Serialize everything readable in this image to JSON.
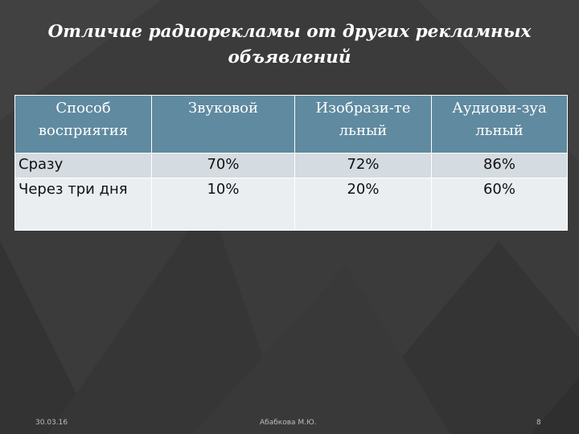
{
  "slide": {
    "title": "Отличие радиорекламы от других рекламных объявлений"
  },
  "table": {
    "headers": [
      "Способ восприятия",
      "Звуковой",
      "Изобрази-те льный",
      "Аудиови-зуа льный"
    ],
    "rows": [
      [
        "Сразу",
        "70%",
        "72%",
        "86%"
      ],
      [
        "Через три дня",
        "10%",
        "20%",
        "60%"
      ]
    ]
  },
  "footer": {
    "date": "30.03.16",
    "author": "Абабкова М.Ю.",
    "page": "8"
  },
  "colors": {
    "background": "#3a3a3a",
    "header_fill": "#5f8aa0",
    "row1_fill": "#d4dbe1",
    "row2_fill": "#eaeef1"
  }
}
